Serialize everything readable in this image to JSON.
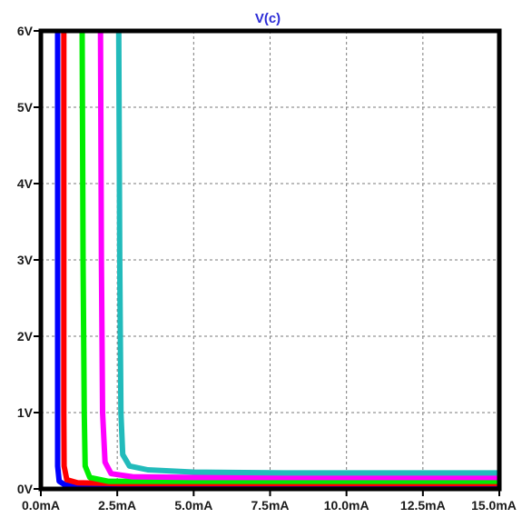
{
  "chart_data": {
    "type": "line",
    "title": "V(c)",
    "xlim": [
      0,
      15
    ],
    "ylim": [
      0,
      6
    ],
    "x_ticks": [
      0,
      2.5,
      5,
      7.5,
      10,
      12.5,
      15
    ],
    "x_tick_labels": [
      "0.0mA",
      "2.5mA",
      "5.0mA",
      "7.5mA",
      "10.0mA",
      "12.5mA",
      "15.0mA"
    ],
    "y_ticks": [
      0,
      1,
      2,
      3,
      4,
      5,
      6
    ],
    "y_tick_labels": [
      "0V",
      "1V",
      "2V",
      "3V",
      "4V",
      "5V",
      "6V"
    ],
    "grid": true,
    "grid_style": "dashed",
    "series": [
      {
        "color": "#0000ff",
        "points": [
          [
            0.55,
            6
          ],
          [
            0.55,
            3
          ],
          [
            0.55,
            1
          ],
          [
            0.55,
            0.3
          ],
          [
            0.6,
            0.1
          ],
          [
            0.8,
            0.05
          ],
          [
            1.5,
            0.04
          ],
          [
            15,
            0.04
          ]
        ]
      },
      {
        "color": "#ff0000",
        "points": [
          [
            0.75,
            6
          ],
          [
            0.75,
            3
          ],
          [
            0.75,
            1
          ],
          [
            0.76,
            0.3
          ],
          [
            0.85,
            0.12
          ],
          [
            1.2,
            0.08
          ],
          [
            2.5,
            0.07
          ],
          [
            15,
            0.07
          ]
        ]
      },
      {
        "color": "#00ee00",
        "points": [
          [
            1.35,
            6
          ],
          [
            1.38,
            3
          ],
          [
            1.42,
            1
          ],
          [
            1.45,
            0.3
          ],
          [
            1.6,
            0.15
          ],
          [
            2.2,
            0.1
          ],
          [
            4,
            0.1
          ],
          [
            15,
            0.1
          ]
        ]
      },
      {
        "color": "#ff00ff",
        "points": [
          [
            1.95,
            6
          ],
          [
            1.98,
            3
          ],
          [
            2.02,
            1
          ],
          [
            2.1,
            0.35
          ],
          [
            2.3,
            0.2
          ],
          [
            3.0,
            0.16
          ],
          [
            5,
            0.15
          ],
          [
            15,
            0.15
          ]
        ]
      },
      {
        "color": "#22bbbb",
        "points": [
          [
            2.55,
            6
          ],
          [
            2.58,
            3
          ],
          [
            2.62,
            1
          ],
          [
            2.68,
            0.45
          ],
          [
            2.9,
            0.3
          ],
          [
            3.5,
            0.25
          ],
          [
            5,
            0.22
          ],
          [
            8,
            0.21
          ],
          [
            15,
            0.21
          ]
        ]
      }
    ]
  }
}
